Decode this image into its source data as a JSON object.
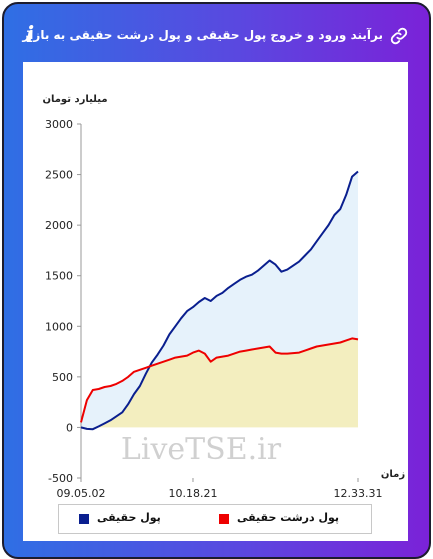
{
  "header": {
    "title": "برآیند ورود و خروج پول حقیقی و پول درشت حقیقی به بازار",
    "link_icon": "link-icon",
    "info_icon": "info-icon",
    "info_glyph": "i"
  },
  "watermark": "LiveTSE.ir",
  "colors": {
    "header_gradient": [
      "#2f6fe4",
      "#7b22d8"
    ],
    "real_money": "#0a1f8f",
    "big_real_money": "#ee0000",
    "real_money_fill": "#e6f2fb",
    "big_real_money_fill": "#f3eebf"
  },
  "chart_data": {
    "type": "area",
    "ylabel": "میلیارد تومان",
    "xlabel": "زمان",
    "ylim": [
      -500,
      3000
    ],
    "yticks": [
      -500,
      0,
      500,
      1000,
      1500,
      2000,
      2500,
      3000
    ],
    "xticks": [
      "09.05.02",
      "10.18.21",
      "12.33.31"
    ],
    "grid": false,
    "legend_position": "bottom",
    "series": [
      {
        "name": "پول حقیقی",
        "color": "#0a1f8f",
        "values": [
          0,
          -15,
          -18,
          10,
          40,
          70,
          110,
          150,
          230,
          330,
          410,
          530,
          640,
          720,
          810,
          920,
          1000,
          1080,
          1150,
          1190,
          1240,
          1280,
          1250,
          1300,
          1330,
          1380,
          1420,
          1460,
          1490,
          1510,
          1550,
          1600,
          1650,
          1610,
          1540,
          1560,
          1600,
          1640,
          1700,
          1760,
          1840,
          1920,
          2000,
          2100,
          2160,
          2300,
          2480,
          2530
        ]
      },
      {
        "name": "پول درشت حقیقی",
        "color": "#ee0000",
        "values": [
          50,
          270,
          370,
          380,
          400,
          410,
          430,
          460,
          500,
          550,
          570,
          590,
          610,
          630,
          650,
          670,
          690,
          700,
          710,
          740,
          760,
          730,
          650,
          690,
          700,
          710,
          730,
          750,
          760,
          770,
          780,
          790,
          800,
          740,
          730,
          730,
          735,
          740,
          760,
          780,
          800,
          810,
          820,
          830,
          840,
          860,
          880,
          870
        ]
      }
    ]
  }
}
